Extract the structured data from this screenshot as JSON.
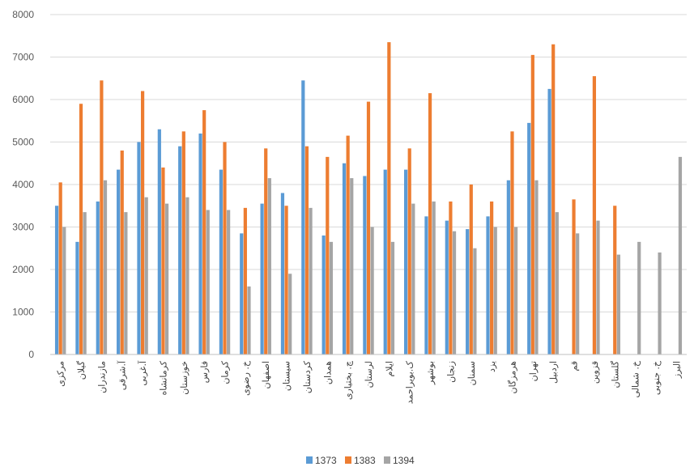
{
  "chart_data": {
    "type": "bar",
    "title": "",
    "xlabel": "",
    "ylabel": "",
    "ylim": [
      0,
      8000
    ],
    "yticks": [
      "0",
      "1000",
      "2000",
      "3000",
      "4000",
      "5000",
      "6000",
      "7000",
      "8000"
    ],
    "grid": true,
    "legend_position": "bottom",
    "categories": [
      "مرکزی",
      "گیلان",
      "مازندران",
      "آ.شرقی",
      "آ.غربی",
      "کرمانشاه",
      "خوزستان",
      "فارس",
      "کرمان",
      "خ. رضوی",
      "اصفهان",
      "سیستان",
      "کردستان",
      "همدان",
      "چ. بختیاری",
      "لرستان",
      "ایلام",
      "ک.بویراحمد",
      "بوشهر",
      "زنجان",
      "سمنان",
      "یزد",
      "هرمزگان",
      "تهران",
      "اردبیل",
      "قم",
      "قزوین",
      "گلستان",
      "خ. شمالی",
      "خ. جنوبی",
      "البرز"
    ],
    "series": [
      {
        "name": "1373",
        "color": "#5b9bd5",
        "values": [
          3500,
          2650,
          3600,
          4350,
          5000,
          5300,
          4900,
          5200,
          4350,
          2850,
          3550,
          3800,
          6450,
          2800,
          4500,
          4200,
          4350,
          4350,
          3250,
          3150,
          2950,
          3250,
          4100,
          5450,
          6250,
          null,
          null,
          null,
          null,
          null,
          null
        ]
      },
      {
        "name": "1383",
        "color": "#ed7d31",
        "values": [
          4050,
          5900,
          6450,
          4800,
          6200,
          4400,
          5250,
          5750,
          5000,
          3450,
          4850,
          3500,
          4900,
          4650,
          5150,
          5950,
          7350,
          4850,
          6150,
          3600,
          4000,
          3600,
          5250,
          7050,
          7300,
          3650,
          6550,
          3500,
          null,
          null,
          null
        ]
      },
      {
        "name": "1394",
        "color": "#a5a5a5",
        "values": [
          3000,
          3350,
          4100,
          3350,
          3700,
          3550,
          3700,
          3400,
          3400,
          1600,
          4150,
          1900,
          3450,
          2650,
          4150,
          3000,
          2650,
          3550,
          3600,
          2900,
          2500,
          3000,
          3000,
          4100,
          3350,
          2850,
          3150,
          2350,
          2650,
          2400,
          4650
        ]
      }
    ]
  }
}
